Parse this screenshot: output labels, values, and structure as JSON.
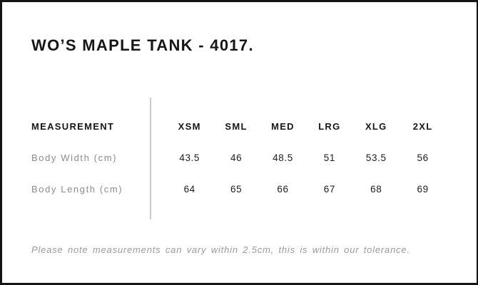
{
  "title": "WO’S MAPLE TANK - 4017.",
  "table": {
    "measurement_label": "MEASUREMENT",
    "sizes": [
      "XSM",
      "SML",
      "MED",
      "LRG",
      "XLG",
      "2XL"
    ],
    "rows": [
      {
        "label": "Body Width (cm)",
        "values": [
          "43.5",
          "46",
          "48.5",
          "51",
          "53.5",
          "56"
        ]
      },
      {
        "label": "Body Length (cm)",
        "values": [
          "64",
          "65",
          "66",
          "67",
          "68",
          "69"
        ]
      }
    ]
  },
  "footer": {
    "note": "Please note measurements can vary within 2.5cm, this is within our tolerance."
  },
  "colors": {
    "frame_border": "#141414",
    "heading_text": "#161616",
    "row_label_text": "#8c8c8c",
    "value_text": "#1c1c1c",
    "note_text": "#9a9a9a",
    "divider": "#cbcbcb",
    "background": "#ffffff"
  }
}
